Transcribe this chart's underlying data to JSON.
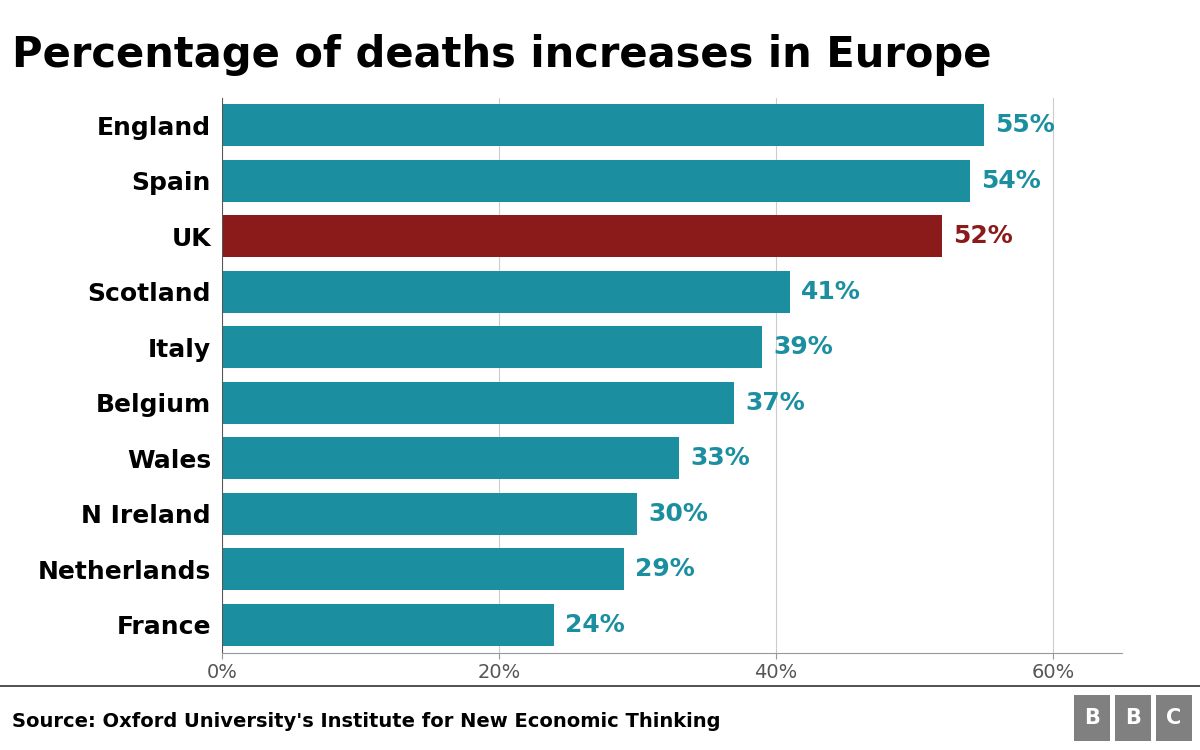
{
  "title": "Percentage of deaths increases in Europe",
  "categories": [
    "England",
    "Spain",
    "UK",
    "Scotland",
    "Italy",
    "Belgium",
    "Wales",
    "N Ireland",
    "Netherlands",
    "France"
  ],
  "values": [
    55,
    54,
    52,
    41,
    39,
    37,
    33,
    30,
    29,
    24
  ],
  "bar_colors": [
    "#1b8fa0",
    "#1b8fa0",
    "#8b1a1a",
    "#1b8fa0",
    "#1b8fa0",
    "#1b8fa0",
    "#1b8fa0",
    "#1b8fa0",
    "#1b8fa0",
    "#1b8fa0"
  ],
  "label_colors": [
    "#1b8fa0",
    "#1b8fa0",
    "#8b1a1a",
    "#1b8fa0",
    "#1b8fa0",
    "#1b8fa0",
    "#1b8fa0",
    "#1b8fa0",
    "#1b8fa0",
    "#1b8fa0"
  ],
  "source": "Source: Oxford University's Institute for New Economic Thinking",
  "xlim": [
    0,
    65
  ],
  "xticks": [
    0,
    20,
    40,
    60
  ],
  "xtick_labels": [
    "0%",
    "20%",
    "40%",
    "60%"
  ],
  "background_color": "#ffffff",
  "title_fontsize": 30,
  "bar_label_fontsize": 18,
  "axis_label_fontsize": 14,
  "source_fontsize": 14,
  "category_fontsize": 18,
  "footer_bg": "#c8c8c8",
  "bbc_box_color": "#808080",
  "bbc_text_color": "#ffffff"
}
